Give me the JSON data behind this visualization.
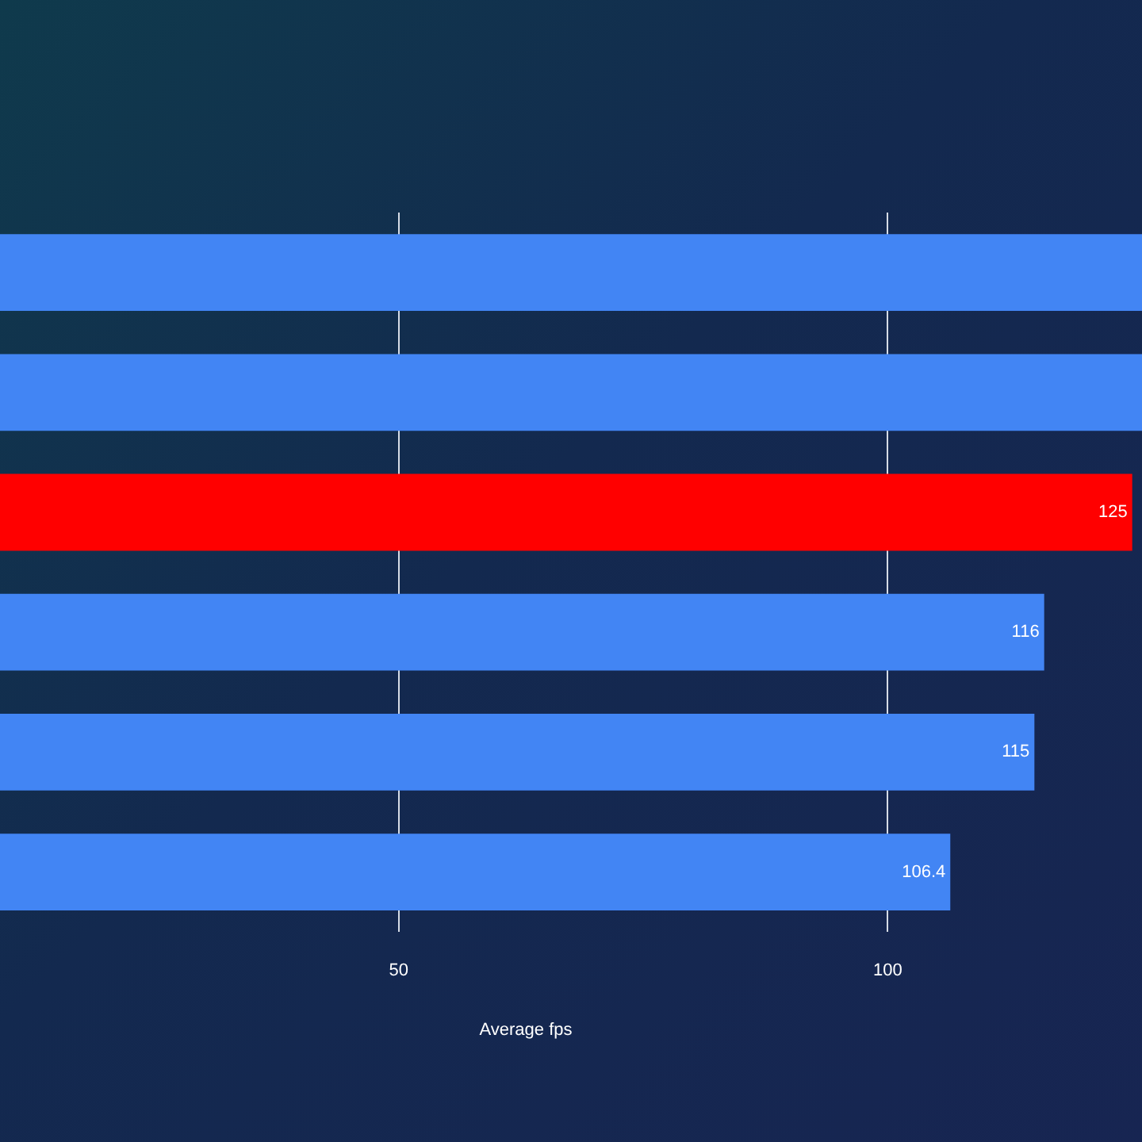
{
  "chart_data": {
    "type": "bar",
    "orientation": "horizontal",
    "xlabel": "Average fps",
    "categories": [
      null,
      null,
      null,
      null,
      null,
      null
    ],
    "values": [
      126,
      126,
      125,
      116,
      115,
      106.4
    ],
    "colors": [
      "#4285f4",
      "#4285f4",
      "#ff0000",
      "#4285f4",
      "#4285f4",
      "#4285f4"
    ],
    "value_labels": [
      null,
      null,
      "125",
      "116",
      "115",
      "106.4"
    ],
    "xlim": [
      0,
      126
    ],
    "xticks": [
      50,
      100
    ],
    "grid": "x",
    "legend": false
  }
}
